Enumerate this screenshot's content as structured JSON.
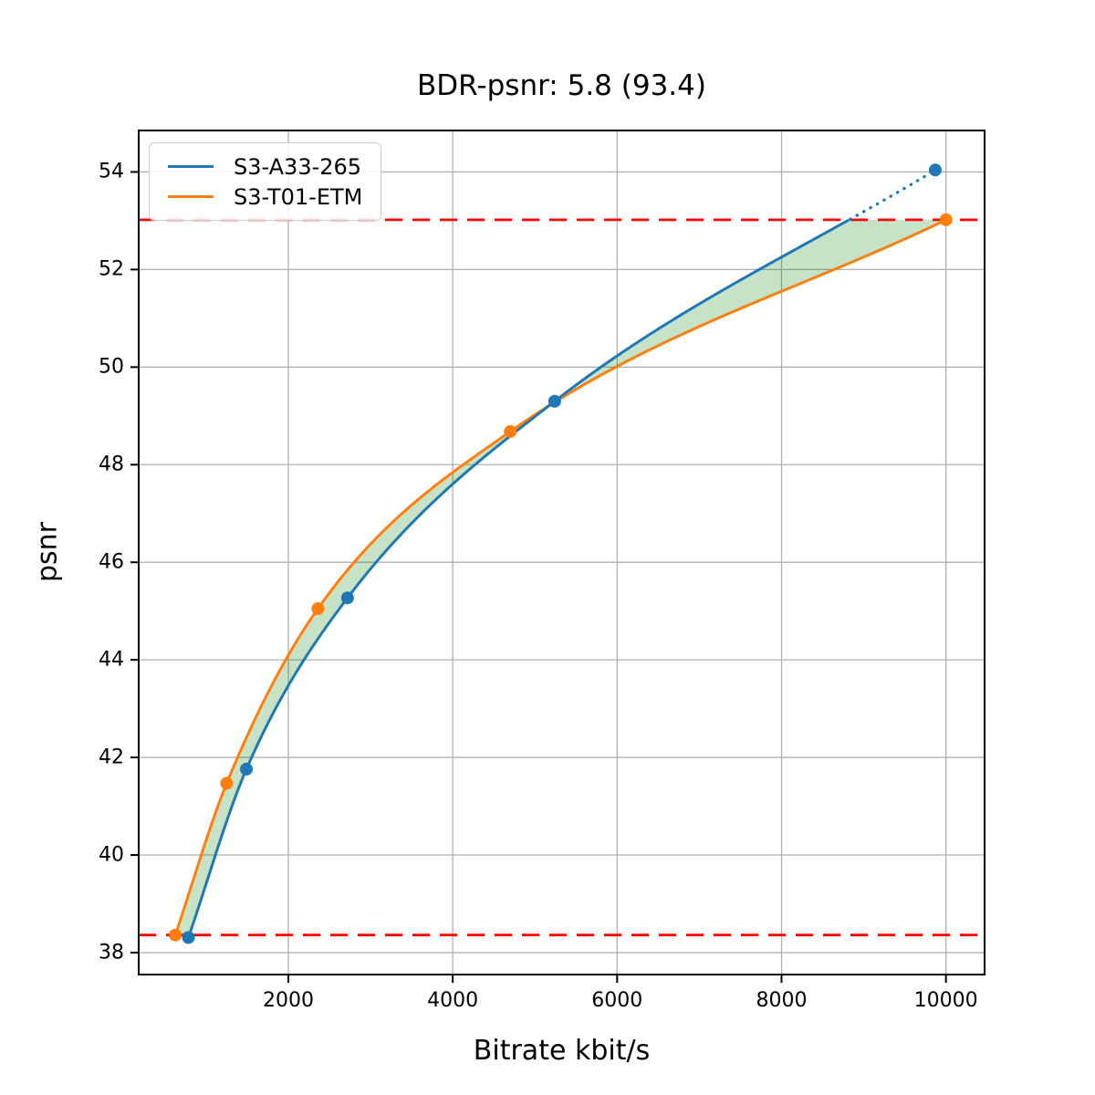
{
  "chart_data": {
    "type": "line",
    "title": "BDR-psnr: 5.8 (93.4)",
    "xlabel": "Bitrate kbit/s",
    "ylabel": "psnr",
    "xlim": [
      180,
      10470
    ],
    "ylim": [
      37.55,
      54.85
    ],
    "xticks": [
      2000,
      4000,
      6000,
      8000,
      10000
    ],
    "yticks": [
      38,
      40,
      42,
      44,
      46,
      48,
      50,
      52,
      54
    ],
    "grid": true,
    "grid_color": "#b0b0b0",
    "legend_position": "upper-left",
    "series": [
      {
        "name": "S3-A33-265",
        "color": "#1f77b4",
        "marker": "circle",
        "x": [
          785,
          1490,
          2720,
          5240,
          9870
        ],
        "y": [
          38.31,
          41.76,
          45.27,
          49.3,
          54.04
        ],
        "dotted_above_psnr": 53.02
      },
      {
        "name": "S3-T01-ETM",
        "color": "#ff7f0e",
        "marker": "circle",
        "x": [
          625,
          1250,
          2360,
          4700,
          10000
        ],
        "y": [
          38.36,
          41.47,
          45.05,
          48.68,
          53.02
        ]
      }
    ],
    "overlap_hlines": {
      "y": [
        38.36,
        53.02
      ],
      "color": "#ff0000",
      "style": "dashed"
    },
    "fill_between_color": "rgba(0, 128, 0, 0.22)"
  }
}
